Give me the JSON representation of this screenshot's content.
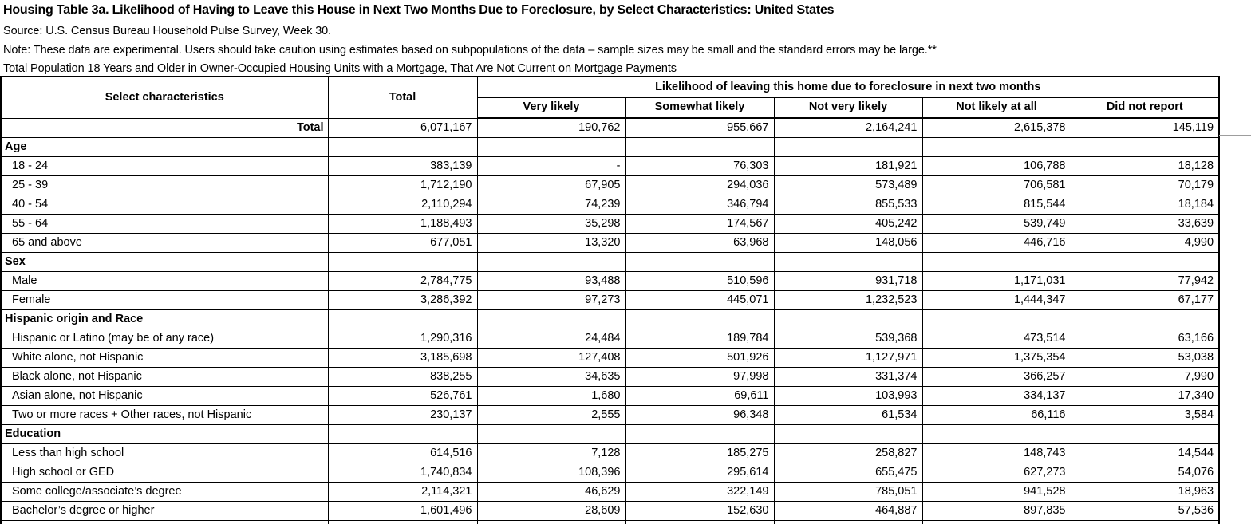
{
  "colors": {
    "text": "#000000",
    "background": "#ffffff",
    "table_border": "#000000",
    "freeze_pane_line": "#9d9d9d"
  },
  "header": {
    "title": "Housing Table 3a. Likelihood of Having to Leave this House in Next Two Months Due to Foreclosure, by Select Characteristics: United States",
    "source": "Source: U.S. Census Bureau Household Pulse Survey, Week 30.",
    "note": "Note: These data are experimental. Users should take caution using estimates based on subpopulations of the data – sample sizes may be small and the standard errors may be large.**",
    "universe": "Total Population 18 Years and Older in Owner-Occupied Housing Units with a Mortgage, That Are Not Current on Mortgage Payments"
  },
  "table": {
    "col1_header": "Select characteristics",
    "col2_header": "Total",
    "group_header": "Likelihood of leaving this home due to foreclosure in next two months",
    "sub_headers": [
      "Very likely",
      "Somewhat likely",
      "Not very likely",
      "Not likely at all",
      "Did not report"
    ],
    "rows": [
      {
        "type": "total",
        "label": "Total",
        "values": [
          "6,071,167",
          "190,762",
          "955,667",
          "2,164,241",
          "2,615,378",
          "145,119"
        ]
      },
      {
        "type": "section",
        "label": "Age",
        "values": [
          "",
          "",
          "",
          "",
          "",
          ""
        ]
      },
      {
        "type": "data",
        "label": "18 - 24",
        "values": [
          "383,139",
          "-",
          "76,303",
          "181,921",
          "106,788",
          "18,128"
        ]
      },
      {
        "type": "data",
        "label": "25 - 39",
        "values": [
          "1,712,190",
          "67,905",
          "294,036",
          "573,489",
          "706,581",
          "70,179"
        ]
      },
      {
        "type": "data",
        "label": "40 - 54",
        "values": [
          "2,110,294",
          "74,239",
          "346,794",
          "855,533",
          "815,544",
          "18,184"
        ]
      },
      {
        "type": "data",
        "label": "55 - 64",
        "values": [
          "1,188,493",
          "35,298",
          "174,567",
          "405,242",
          "539,749",
          "33,639"
        ]
      },
      {
        "type": "data",
        "label": "65 and above",
        "values": [
          "677,051",
          "13,320",
          "63,968",
          "148,056",
          "446,716",
          "4,990"
        ]
      },
      {
        "type": "section",
        "label": "Sex",
        "values": [
          "",
          "",
          "",
          "",
          "",
          ""
        ]
      },
      {
        "type": "data",
        "label": "Male",
        "values": [
          "2,784,775",
          "93,488",
          "510,596",
          "931,718",
          "1,171,031",
          "77,942"
        ]
      },
      {
        "type": "data",
        "label": "Female",
        "values": [
          "3,286,392",
          "97,273",
          "445,071",
          "1,232,523",
          "1,444,347",
          "67,177"
        ]
      },
      {
        "type": "section",
        "label": "Hispanic origin and Race",
        "values": [
          "",
          "",
          "",
          "",
          "",
          ""
        ]
      },
      {
        "type": "data",
        "label": "Hispanic or Latino (may be of any race)",
        "values": [
          "1,290,316",
          "24,484",
          "189,784",
          "539,368",
          "473,514",
          "63,166"
        ]
      },
      {
        "type": "data",
        "label": "White alone, not Hispanic",
        "values": [
          "3,185,698",
          "127,408",
          "501,926",
          "1,127,971",
          "1,375,354",
          "53,038"
        ]
      },
      {
        "type": "data",
        "label": "Black alone, not Hispanic",
        "values": [
          "838,255",
          "34,635",
          "97,998",
          "331,374",
          "366,257",
          "7,990"
        ]
      },
      {
        "type": "data",
        "label": "Asian alone, not Hispanic",
        "values": [
          "526,761",
          "1,680",
          "69,611",
          "103,993",
          "334,137",
          "17,340"
        ]
      },
      {
        "type": "data",
        "label": "Two or more races + Other races, not Hispanic",
        "values": [
          "230,137",
          "2,555",
          "96,348",
          "61,534",
          "66,116",
          "3,584"
        ]
      },
      {
        "type": "section",
        "label": "Education",
        "values": [
          "",
          "",
          "",
          "",
          "",
          ""
        ]
      },
      {
        "type": "data",
        "label": "Less than high school",
        "values": [
          "614,516",
          "7,128",
          "185,275",
          "258,827",
          "148,743",
          "14,544"
        ]
      },
      {
        "type": "data",
        "label": "High school or GED",
        "values": [
          "1,740,834",
          "108,396",
          "295,614",
          "655,475",
          "627,273",
          "54,076"
        ]
      },
      {
        "type": "data",
        "label": "Some college/associate’s degree",
        "values": [
          "2,114,321",
          "46,629",
          "322,149",
          "785,051",
          "941,528",
          "18,963"
        ]
      },
      {
        "type": "data",
        "label": "Bachelor’s degree or higher",
        "values": [
          "1,601,496",
          "28,609",
          "152,630",
          "464,887",
          "897,835",
          "57,536"
        ]
      }
    ]
  }
}
